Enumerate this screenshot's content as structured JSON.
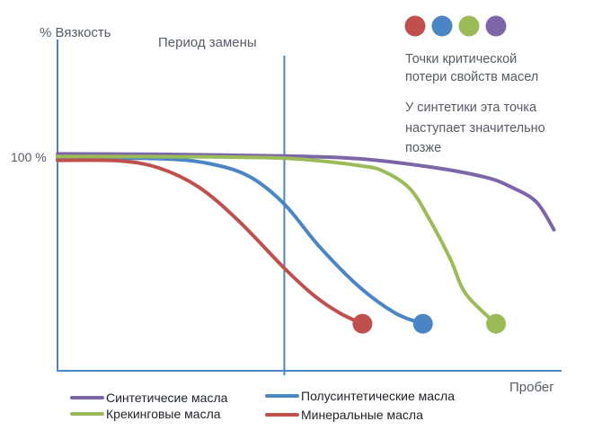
{
  "chart_data": {
    "type": "line",
    "ylabel": "% Вязкость",
    "xlabel": "Пробег",
    "y_tick_label": "100 %",
    "vline_label": "Период замены",
    "ylim": [
      0,
      115
    ],
    "xlim": [
      0,
      100
    ],
    "vline_x": 45,
    "grid": false,
    "legend_position": "bottom",
    "series": [
      {
        "name": "Синтетичесие масла",
        "color": "#7d66a8",
        "x": [
          0,
          20,
          45,
          60,
          75,
          85,
          90,
          95,
          98.5
        ],
        "y": [
          101.5,
          101.3,
          100.5,
          99.2,
          95,
          90.5,
          86,
          79,
          66
        ],
        "end_marker": false
      },
      {
        "name": "Полусинтетические масла",
        "color": "#4a86c5",
        "x": [
          0,
          20,
          30,
          38,
          45,
          52,
          60,
          67,
          72.5
        ],
        "y": [
          99.5,
          99.3,
          97,
          91,
          78,
          58,
          39,
          27,
          22
        ],
        "end_marker": true
      },
      {
        "name": "Крекинговые масла",
        "color": "#9bbb59",
        "x": [
          0,
          20,
          45,
          60,
          65,
          70,
          74,
          78,
          81,
          87
        ],
        "y": [
          100.3,
          100.2,
          99.5,
          96,
          93,
          85,
          70,
          52,
          36,
          22
        ],
        "end_marker": true
      },
      {
        "name": "Минеральные масла",
        "color": "#c0504d",
        "x": [
          0,
          12,
          20,
          28,
          36,
          45,
          51,
          56,
          60.5
        ],
        "y": [
          98.5,
          98.3,
          95,
          86,
          70,
          48,
          35,
          27,
          22
        ],
        "end_marker": true
      }
    ],
    "annotations": {
      "dots_colors": [
        "#c0504d",
        "#4a86c5",
        "#9bbb59",
        "#7d66a8"
      ],
      "note_lines_1": [
        "Точки критической",
        "потери свойств масел"
      ],
      "note_lines_2": [
        "У синтетики эта точка",
        "наступает значительно",
        "позже"
      ]
    },
    "legend": [
      {
        "name": "Синтетичесие масла",
        "color": "#7d66a8"
      },
      {
        "name": "Полусинтетические масла",
        "color": "#4a86c5"
      },
      {
        "name": "Крекинговые масла",
        "color": "#9bbb59"
      },
      {
        "name": "Минеральные масла",
        "color": "#c0504d"
      }
    ]
  }
}
